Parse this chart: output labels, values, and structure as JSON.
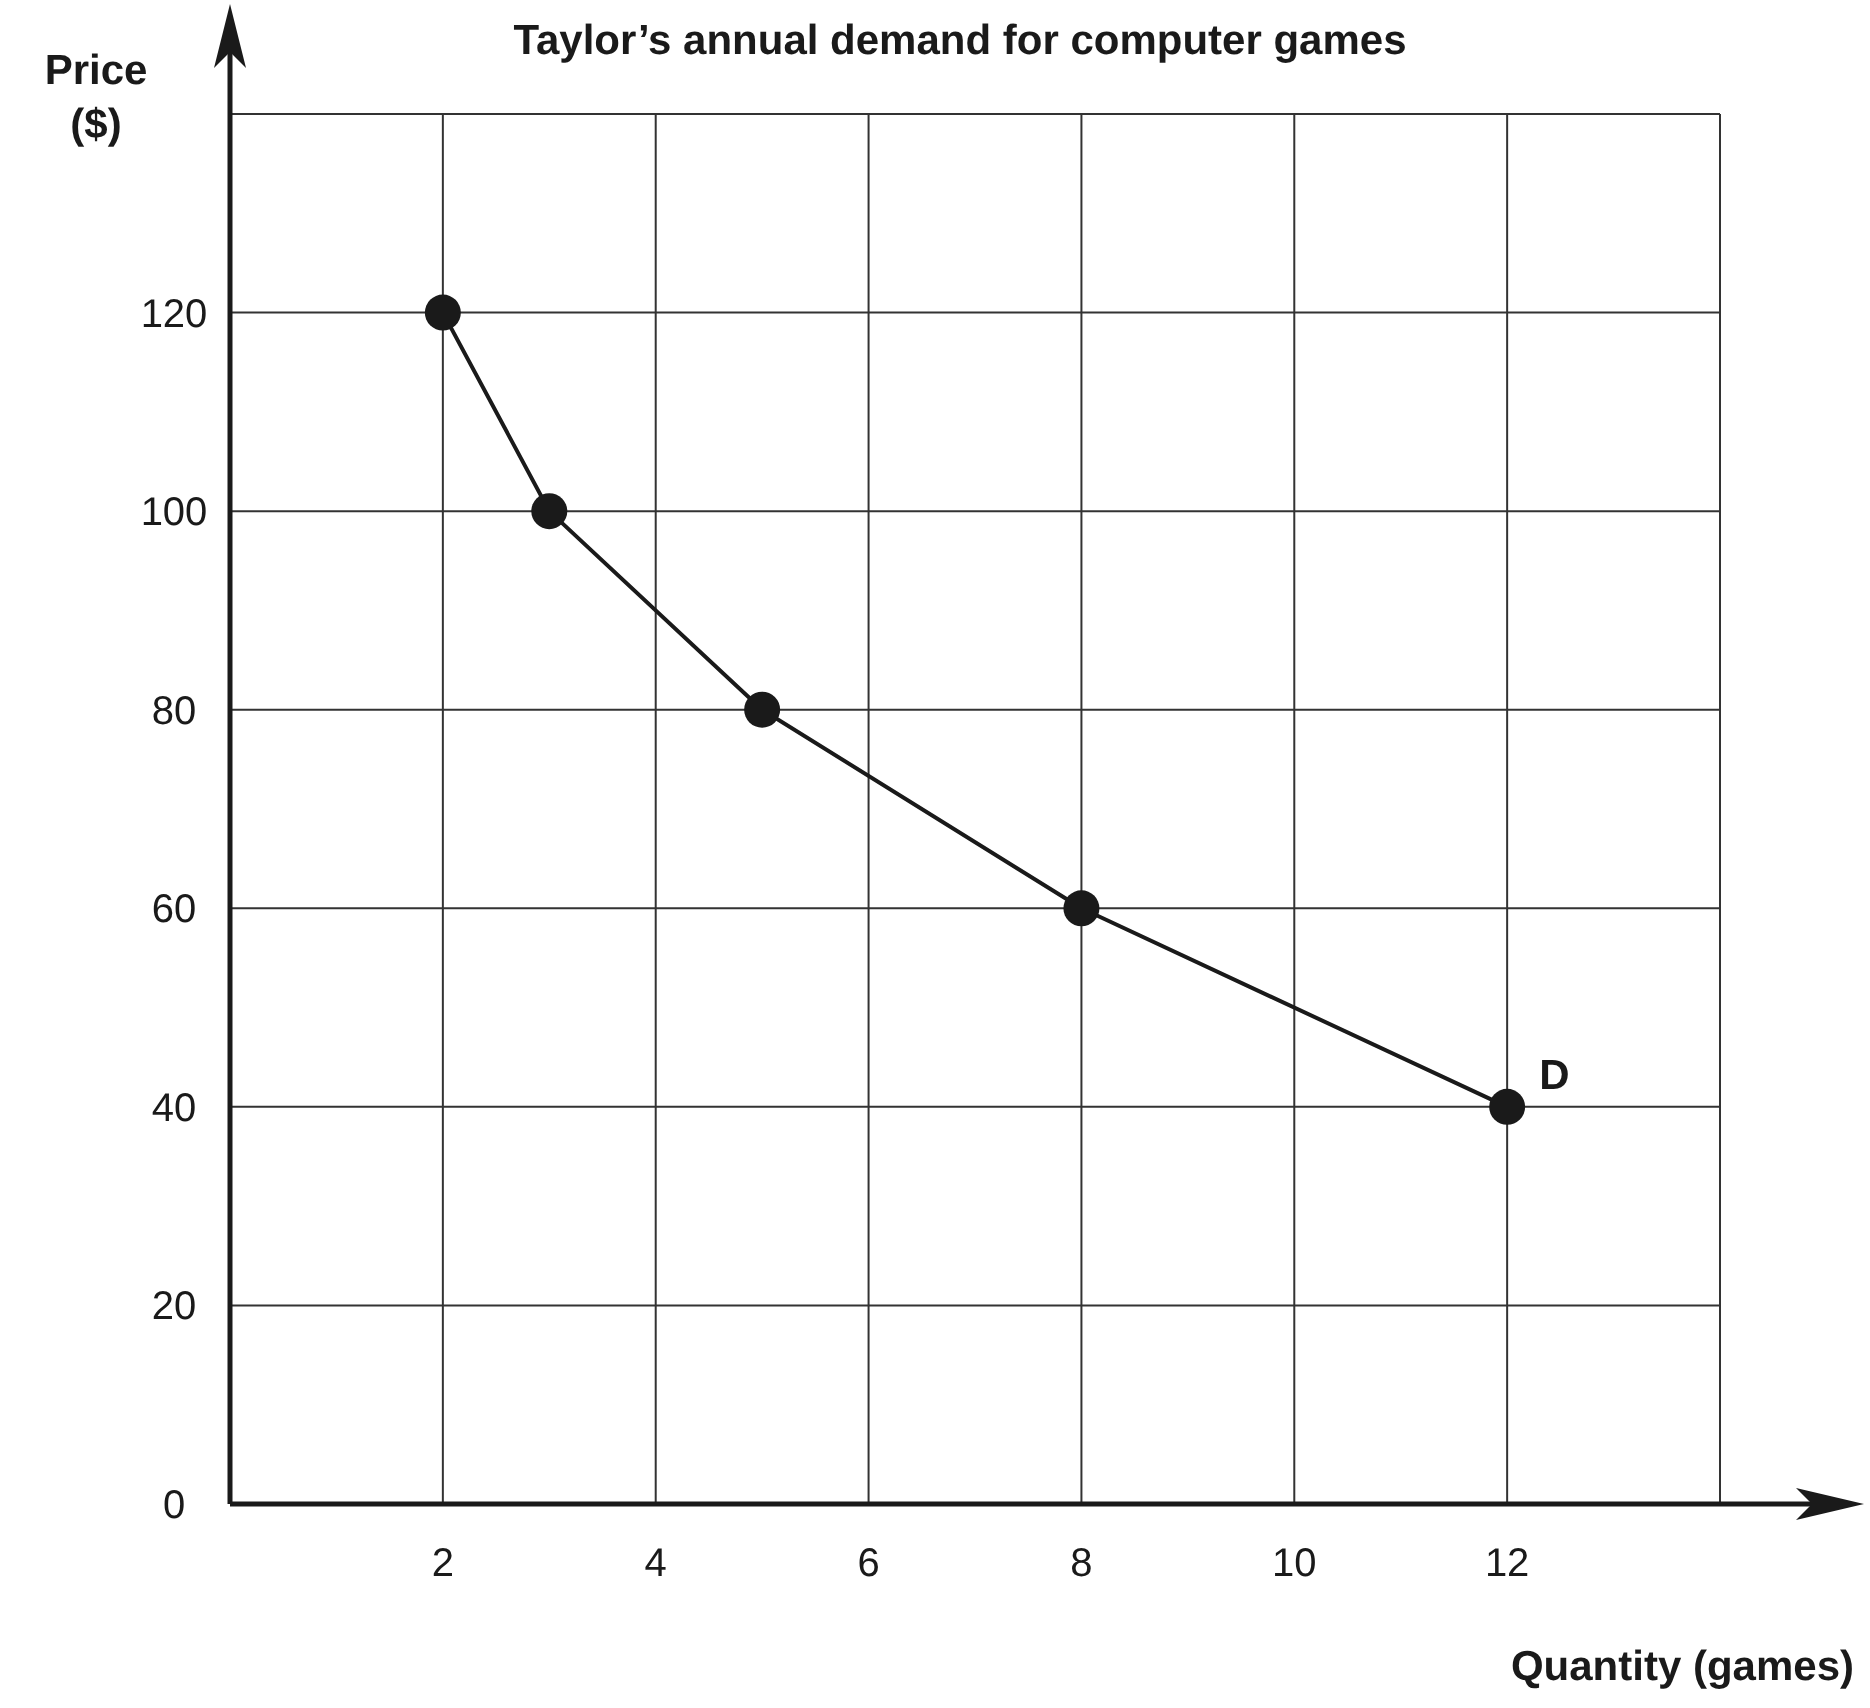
{
  "chart_data": {
    "type": "line",
    "title": "Taylor’s annual demand for computer games",
    "xlabel": "Quantity (games)",
    "ylabel": "Price ($)",
    "x": [
      2,
      3,
      5,
      8,
      12
    ],
    "series": [
      {
        "color": "#1a1a1a",
        "values": [
          120,
          100,
          80,
          60,
          40
        ]
      }
    ],
    "xlim": [
      0,
      14
    ],
    "xticks": [
      2,
      4,
      6,
      8,
      10,
      12,
      {
        "value": 14,
        "label": null
      }
    ],
    "ylim": [
      0,
      140
    ],
    "yticks": [
      0,
      20,
      40,
      60,
      80,
      100,
      120,
      {
        "value": 140,
        "label": null
      }
    ],
    "grid": true,
    "marker": "circle",
    "line_style": "solid",
    "annotations": [
      {
        "text": "D",
        "x": 12,
        "y": 40
      }
    ]
  }
}
